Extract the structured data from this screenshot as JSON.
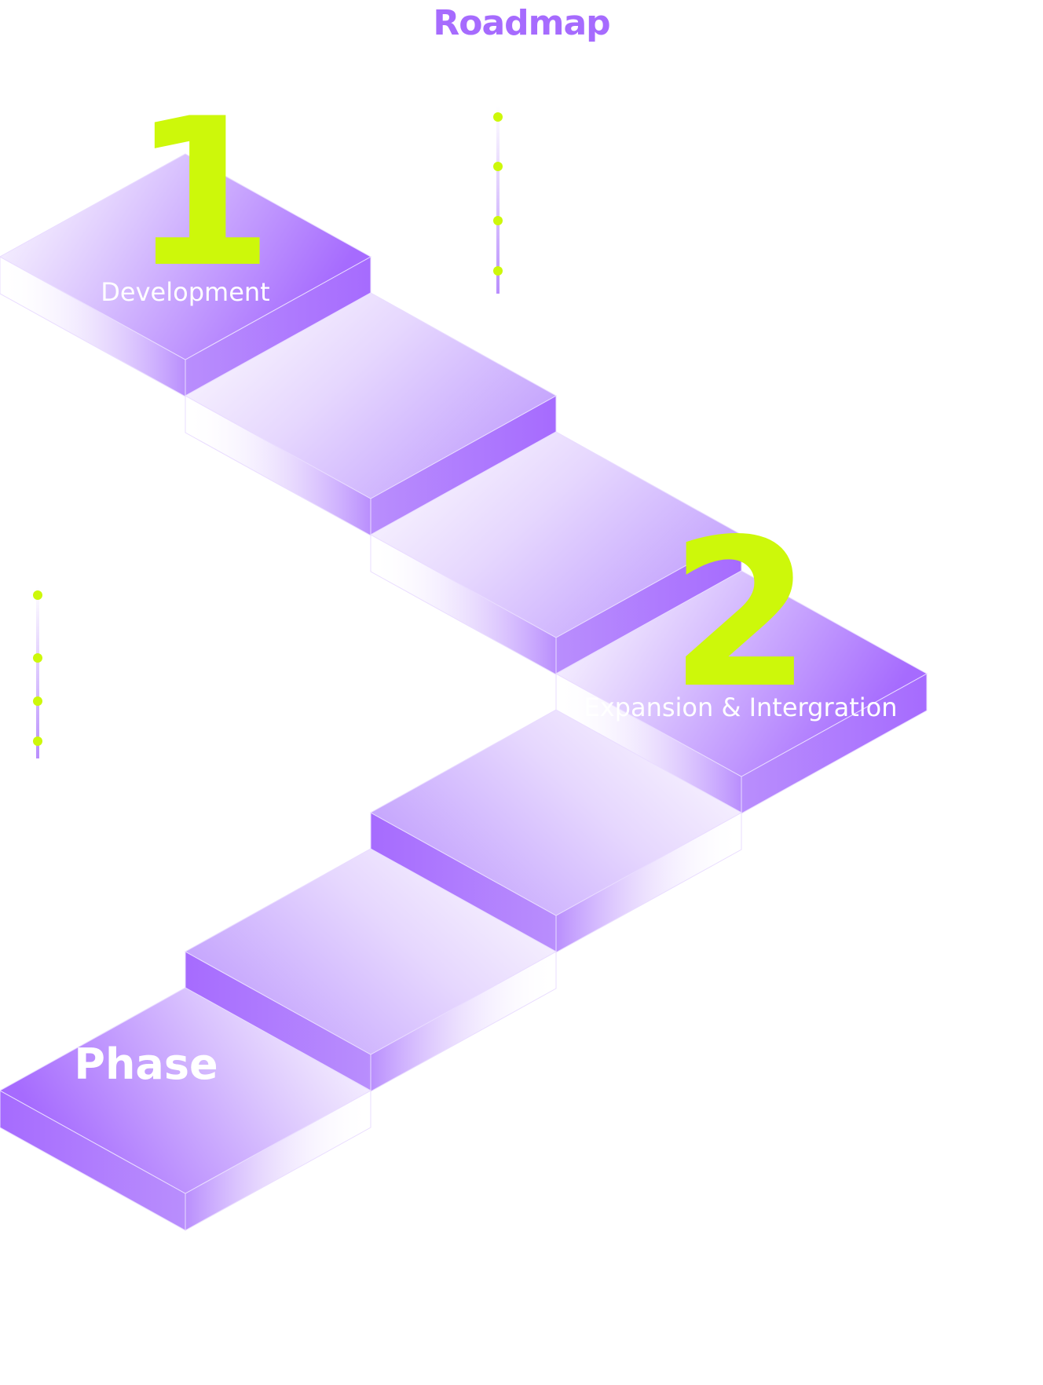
{
  "page": {
    "title": "Roadmap"
  },
  "colors": {
    "accent": "#a66bfe",
    "highlight": "#cdf80a",
    "tile_light": "#ffffff",
    "tile_mid": "#c8a8fd",
    "tile_dark": "#a66bfe"
  },
  "phases": [
    {
      "number": "1",
      "label": "Development"
    },
    {
      "number": "2",
      "label": "Expansion & Intergration"
    }
  ],
  "phase_word": "Phase"
}
